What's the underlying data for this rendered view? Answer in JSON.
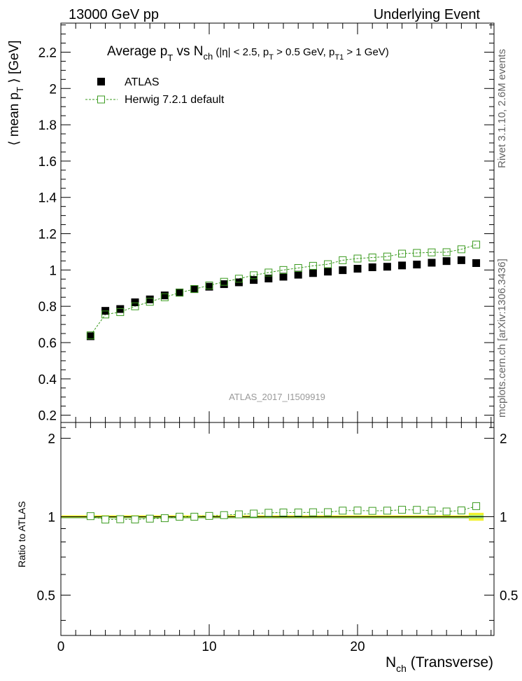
{
  "header": {
    "left_label": "13000 GeV pp",
    "right_label": "Underlying Event"
  },
  "side_labels": {
    "rivet": "Rivet 3.1.10,  2.6M events",
    "mcplots": "mcplots.cern.ch [arXiv:1306.3436]"
  },
  "analysis_id": "ATLAS_2017_I1509919",
  "colors": {
    "data": "#000000",
    "mc": "#3a9a1e",
    "band_outer": "#f2f230",
    "band_inner": "#9be070"
  },
  "chart_data": [
    {
      "type": "scatter",
      "title": "Average pT vs Nch (|η| < 2.5, pT > 0.5 GeV, pT1 > 1 GeV)",
      "ylabel": "⟨ mean pT ⟩ [GeV]",
      "xlabel": "Nch (Transverse)",
      "xlim": [
        0,
        29.2
      ],
      "ylim": [
        0.16,
        2.36
      ],
      "xticks": [
        0,
        10,
        20
      ],
      "yticks": [
        0.2,
        0.4,
        0.6,
        0.8,
        1,
        1.2,
        1.4,
        1.6,
        1.8,
        2,
        2.2
      ],
      "ytick_labels": [
        "0.2",
        "0.4",
        "0.6",
        "0.8",
        "1",
        "1.2",
        "1.4",
        "1.6",
        "1.8",
        "2",
        "2.2"
      ],
      "legend_placement": "top-left",
      "x": [
        2,
        3,
        4,
        5,
        6,
        7,
        8,
        9,
        10,
        11,
        12,
        13,
        14,
        15,
        16,
        17,
        18,
        19,
        20,
        21,
        22,
        23,
        24,
        25,
        26,
        27,
        28
      ],
      "series": [
        {
          "name": "ATLAS",
          "marker": "filled-square",
          "values": [
            0.635,
            0.775,
            0.785,
            0.822,
            0.838,
            0.86,
            0.876,
            0.895,
            0.908,
            0.922,
            0.932,
            0.945,
            0.953,
            0.963,
            0.974,
            0.983,
            0.991,
            0.999,
            1.007,
            1.015,
            1.018,
            1.025,
            1.03,
            1.04,
            1.049,
            1.054,
            1.038
          ]
        },
        {
          "name": "Herwig 7.2.1 default",
          "marker": "open-square-dashed-line",
          "values": [
            0.64,
            0.755,
            0.768,
            0.8,
            0.825,
            0.85,
            0.875,
            0.895,
            0.915,
            0.935,
            0.952,
            0.971,
            0.986,
            1.0,
            1.011,
            1.023,
            1.032,
            1.054,
            1.063,
            1.069,
            1.074,
            1.09,
            1.094,
            1.097,
            1.098,
            1.114,
            1.14
          ]
        }
      ]
    },
    {
      "type": "scatter",
      "title": "",
      "ylabel": "Ratio to ATLAS",
      "xlabel": "Nch (Transverse)",
      "xlim": [
        0,
        29.2
      ],
      "ylim": [
        0.35,
        2.3
      ],
      "yticks": [
        0.5,
        1,
        2
      ],
      "ytick_labels": [
        "0.5",
        "1",
        "2"
      ],
      "reference_line": 1,
      "x": [
        2,
        3,
        4,
        5,
        6,
        7,
        8,
        9,
        10,
        11,
        12,
        13,
        14,
        15,
        16,
        17,
        18,
        19,
        20,
        21,
        22,
        23,
        24,
        25,
        26,
        27,
        28
      ],
      "series": [
        {
          "name": "Herwig 7.2.1 default",
          "marker": "open-square-dashed-line",
          "values": [
            1.005,
            0.975,
            0.978,
            0.976,
            0.983,
            0.987,
            1.0,
            1.0,
            1.007,
            1.014,
            1.021,
            1.028,
            1.035,
            1.038,
            1.038,
            1.04,
            1.041,
            1.055,
            1.056,
            1.053,
            1.055,
            1.063,
            1.062,
            1.055,
            1.047,
            1.057,
            1.098
          ]
        }
      ],
      "band_last_point": {
        "x": 28,
        "half_width": 0.5,
        "outer": 0.035,
        "inner": 0.015
      }
    }
  ]
}
